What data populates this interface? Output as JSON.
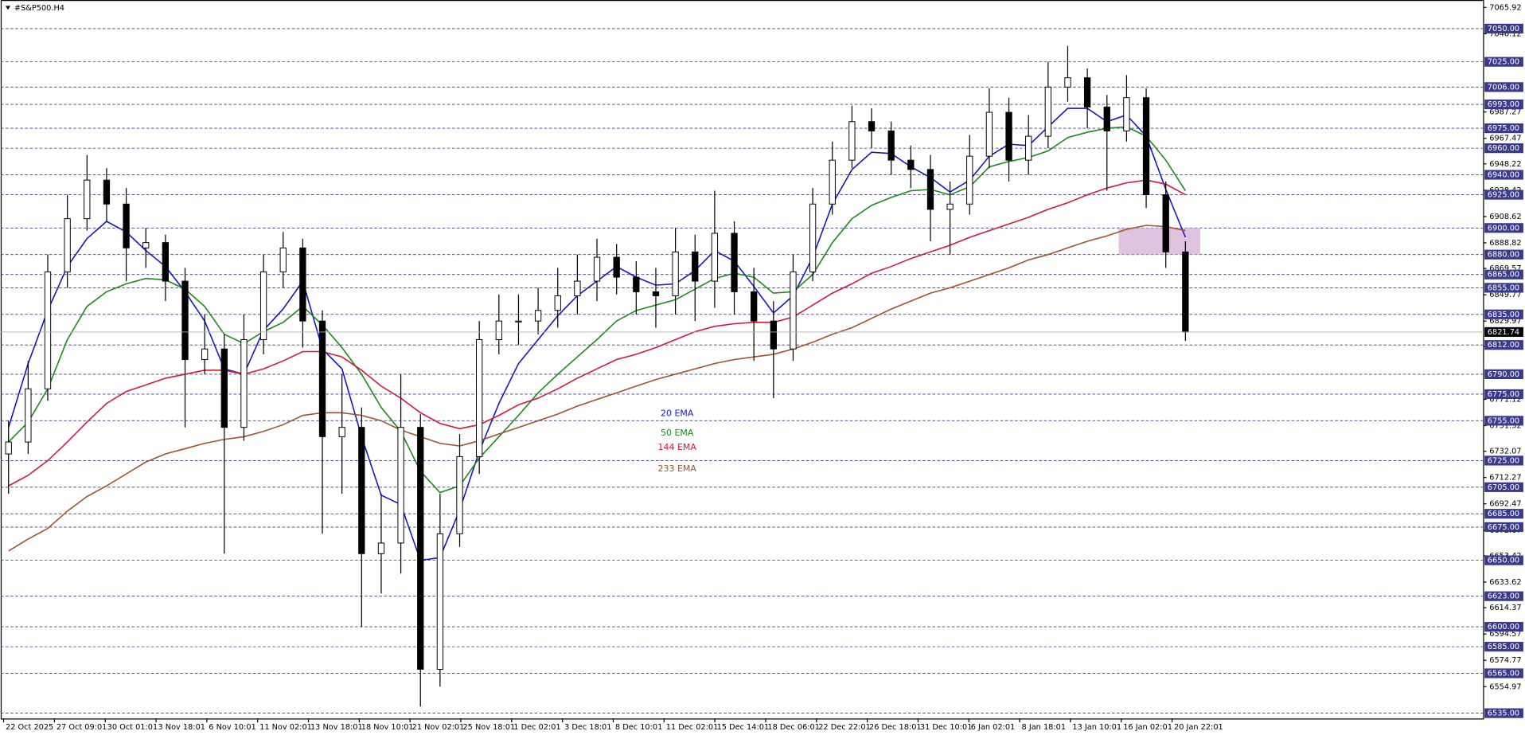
{
  "chart_data": {
    "type": "candlestick",
    "title": "#S&P500.H4",
    "xlim": [
      -0.4,
      75.2
    ],
    "ylim": [
      6531,
      7071.5
    ],
    "xticks": [
      {
        "value": -0.25,
        "label": "22 Oct 2025"
      },
      {
        "value": 2.34,
        "label": "27 Oct 09:01"
      },
      {
        "value": 4.93,
        "label": "30 Oct 01:01"
      },
      {
        "value": 7.52,
        "label": "3 Nov 18:01"
      },
      {
        "value": 10.11,
        "label": "6 Nov 10:01"
      },
      {
        "value": 12.7,
        "label": "11 Nov 02:01"
      },
      {
        "value": 15.29,
        "label": "13 Nov 18:01"
      },
      {
        "value": 17.88,
        "label": "18 Nov 10:01"
      },
      {
        "value": 20.47,
        "label": "21 Nov 02:01"
      },
      {
        "value": 23.06,
        "label": "25 Nov 18:01"
      },
      {
        "value": 25.65,
        "label": "1 Dec 02:01"
      },
      {
        "value": 28.24,
        "label": "3 Dec 18:01"
      },
      {
        "value": 30.83,
        "label": "8 Dec 10:01"
      },
      {
        "value": 33.42,
        "label": "11 Dec 02:01"
      },
      {
        "value": 36.01,
        "label": "15 Dec 14:01"
      },
      {
        "value": 38.6,
        "label": "18 Dec 06:01"
      },
      {
        "value": 41.19,
        "label": "22 Dec 22:01"
      },
      {
        "value": 43.78,
        "label": "26 Dec 18:01"
      },
      {
        "value": 46.37,
        "label": "31 Dec 10:01"
      },
      {
        "value": 48.96,
        "label": "6 Jan 02:01"
      },
      {
        "value": 51.55,
        "label": "8 Jan 18:01"
      },
      {
        "value": 54.14,
        "label": "13 Jan 10:01"
      },
      {
        "value": 56.73,
        "label": "16 Jan 02:01"
      },
      {
        "value": 59.32,
        "label": "20 Jan 22:01"
      }
    ],
    "yticks": [
      7065.92,
      7046.12,
      6987.27,
      6967.47,
      6948.22,
      6928.42,
      6908.62,
      6888.82,
      6869.57,
      6849.77,
      6829.97,
      6810.72,
      6771.12,
      6751.32,
      6732.07,
      6712.27,
      6692.47,
      6672.67,
      6653.42,
      6633.62,
      6614.37,
      6594.57,
      6574.77,
      6554.97
    ],
    "levels": [
      {
        "value": 7050,
        "label": "7050.00"
      },
      {
        "value": 7025,
        "label": "7025.00"
      },
      {
        "value": 7006,
        "label": "7006.00"
      },
      {
        "value": 6993,
        "label": "6993.00"
      },
      {
        "value": 6975,
        "label": "6975.00"
      },
      {
        "value": 6960,
        "label": "6960.00"
      },
      {
        "value": 6940,
        "label": "6940.00"
      },
      {
        "value": 6925,
        "label": "6925.00"
      },
      {
        "value": 6900,
        "label": "6900.00"
      },
      {
        "value": 6880,
        "label": "6880.00"
      },
      {
        "value": 6865,
        "label": "6865.00"
      },
      {
        "value": 6855,
        "label": "6855.00"
      },
      {
        "value": 6835,
        "label": "6835.00"
      },
      {
        "value": 6812,
        "label": "6812.00"
      },
      {
        "value": 6790,
        "label": "6790.00"
      },
      {
        "value": 6775,
        "label": "6775.00"
      },
      {
        "value": 6755,
        "label": "6755.00"
      },
      {
        "value": 6725,
        "label": "6725.00"
      },
      {
        "value": 6705,
        "label": "6705.00"
      },
      {
        "value": 6685,
        "label": "6685.00"
      },
      {
        "value": 6675,
        "label": "6675.00"
      },
      {
        "value": 6650,
        "label": "6650.00"
      },
      {
        "value": 6623,
        "label": "6623.00"
      },
      {
        "value": 6600,
        "label": "6600.00"
      },
      {
        "value": 6585,
        "label": "6585.00"
      },
      {
        "value": 6565,
        "label": "6565.00"
      },
      {
        "value": 6535,
        "label": "6535.00"
      }
    ],
    "level_color": "#3a3a8c",
    "last_price": 6821.74,
    "zone": {
      "range": [
        6880,
        6900
      ],
      "color": "#d9b8da"
    },
    "ohlc": {
      "open": [
        6730,
        6739,
        6779,
        6867,
        6907,
        6936,
        6918,
        6885,
        6889,
        6860,
        6801,
        6809,
        6750,
        6816,
        6867,
        6885,
        6830,
        6743,
        6750,
        6655,
        6663,
        6750,
        6568,
        6670,
        6728,
        6816,
        6830,
        6830,
        6838,
        6849,
        6860,
        6878,
        6863,
        6852,
        6849,
        6882,
        6860,
        6896,
        6852,
        6830,
        6809,
        6867,
        6918,
        6951,
        6980,
        6973,
        6951,
        6944,
        6914,
        6918,
        6954,
        6987,
        6951,
        6969,
        7006,
        7013,
        6991,
        6973,
        6998,
        6925,
        6882
      ],
      "high": [
        6755,
        6800,
        6880,
        6925,
        6955,
        6945,
        6930,
        6900,
        6895,
        6870,
        6835,
        6820,
        6835,
        6880,
        6897,
        6892,
        6838,
        6790,
        6765,
        6700,
        6790,
        6760,
        6700,
        6745,
        6830,
        6850,
        6850,
        6855,
        6870,
        6880,
        6892,
        6888,
        6875,
        6870,
        6900,
        6895,
        6928,
        6905,
        6870,
        6845,
        6880,
        6930,
        6965,
        6992,
        6990,
        6980,
        6962,
        6955,
        6935,
        6970,
        7005,
        6998,
        6985,
        7025,
        7037,
        7020,
        7000,
        7015,
        7005,
        6935,
        6890
      ],
      "low": [
        6700,
        6730,
        6770,
        6855,
        6898,
        6905,
        6860,
        6870,
        6845,
        6750,
        6790,
        6655,
        6740,
        6805,
        6855,
        6810,
        6670,
        6700,
        6600,
        6625,
        6640,
        6540,
        6555,
        6660,
        6715,
        6805,
        6812,
        6820,
        6825,
        6835,
        6845,
        6850,
        6835,
        6825,
        6835,
        6830,
        6840,
        6835,
        6800,
        6772,
        6800,
        6860,
        6910,
        6945,
        6960,
        6940,
        6930,
        6890,
        6880,
        6910,
        6945,
        6935,
        6940,
        6960,
        6995,
        6975,
        6928,
        6965,
        6915,
        6870,
        6815
      ],
      "close": [
        6739,
        6779,
        6867,
        6907,
        6936,
        6918,
        6885,
        6889,
        6860,
        6801,
        6809,
        6750,
        6816,
        6867,
        6885,
        6830,
        6743,
        6750,
        6655,
        6663,
        6750,
        6568,
        6670,
        6728,
        6816,
        6830,
        6830,
        6838,
        6849,
        6860,
        6878,
        6863,
        6852,
        6849,
        6882,
        6860,
        6896,
        6852,
        6830,
        6809,
        6867,
        6918,
        6951,
        6980,
        6973,
        6951,
        6944,
        6914,
        6918,
        6954,
        6987,
        6951,
        6969,
        7006,
        7013,
        6991,
        6973,
        6998,
        6925,
        6882,
        6821.74
      ]
    },
    "series": [
      {
        "name": "20 EMA",
        "color": "#1414c8",
        "values": [
          6750,
          6798,
          6838,
          6871,
          6892,
          6905,
          6897,
          6883,
          6871,
          6852,
          6830,
          6794,
          6790,
          6823,
          6839,
          6860,
          6809,
          6794,
          6743,
          6699,
          6692,
          6650,
          6652,
          6688,
          6732,
          6768,
          6798,
          6816,
          6834,
          6849,
          6860,
          6871,
          6863,
          6857,
          6858,
          6868,
          6883,
          6875,
          6856,
          6836,
          6849,
          6878,
          6918,
          6944,
          6957,
          6956,
          6946,
          6938,
          6927,
          6936,
          6954,
          6963,
          6962,
          6976,
          6990,
          6990,
          6980,
          6985,
          6969,
          6929,
          6893
        ]
      },
      {
        "name": "50 EMA",
        "color": "#1a8a1a",
        "values": [
          6739,
          6754,
          6779,
          6816,
          6841,
          6852,
          6858,
          6862,
          6861,
          6854,
          6841,
          6820,
          6813,
          6822,
          6829,
          6841,
          6827,
          6810,
          6790,
          6765,
          6747,
          6717,
          6701,
          6706,
          6727,
          6743,
          6759,
          6776,
          6790,
          6803,
          6816,
          6830,
          6838,
          6842,
          6846,
          6854,
          6862,
          6866,
          6863,
          6851,
          6852,
          6865,
          6889,
          6907,
          6917,
          6923,
          6928,
          6929,
          6925,
          6931,
          6946,
          6950,
          6953,
          6958,
          6968,
          6972,
          6975,
          6976,
          6969,
          6951,
          6928
        ]
      },
      {
        "name": "144 EMA",
        "color": "#dc143c",
        "values": [
          6706,
          6714,
          6725,
          6739,
          6754,
          6768,
          6777,
          6782,
          6787,
          6790,
          6793,
          6793,
          6790,
          6794,
          6800,
          6807,
          6807,
          6803,
          6793,
          6781,
          6772,
          6761,
          6753,
          6749,
          6752,
          6759,
          6767,
          6772,
          6779,
          6787,
          6794,
          6801,
          6805,
          6810,
          6816,
          6822,
          6826,
          6828,
          6829,
          6829,
          6833,
          6842,
          6851,
          6858,
          6866,
          6871,
          6877,
          6882,
          6887,
          6893,
          6898,
          6903,
          6908,
          6914,
          6919,
          6925,
          6930,
          6934,
          6936,
          6933,
          6925
        ]
      },
      {
        "name": "233 EMA",
        "color": "#a0522d",
        "values": [
          6657,
          6666,
          6674,
          6687,
          6698,
          6706,
          6715,
          6724,
          6730,
          6734,
          6738,
          6741,
          6743,
          6747,
          6752,
          6759,
          6761,
          6761,
          6759,
          6755,
          6748,
          6743,
          6738,
          6736,
          6740,
          6745,
          6750,
          6755,
          6760,
          6766,
          6771,
          6776,
          6781,
          6786,
          6790,
          6794,
          6798,
          6801,
          6803,
          6805,
          6809,
          6814,
          6820,
          6825,
          6832,
          6839,
          6845,
          6851,
          6855,
          6860,
          6865,
          6870,
          6876,
          6880,
          6885,
          6890,
          6894,
          6899,
          6902,
          6901,
          6898
        ]
      }
    ]
  }
}
